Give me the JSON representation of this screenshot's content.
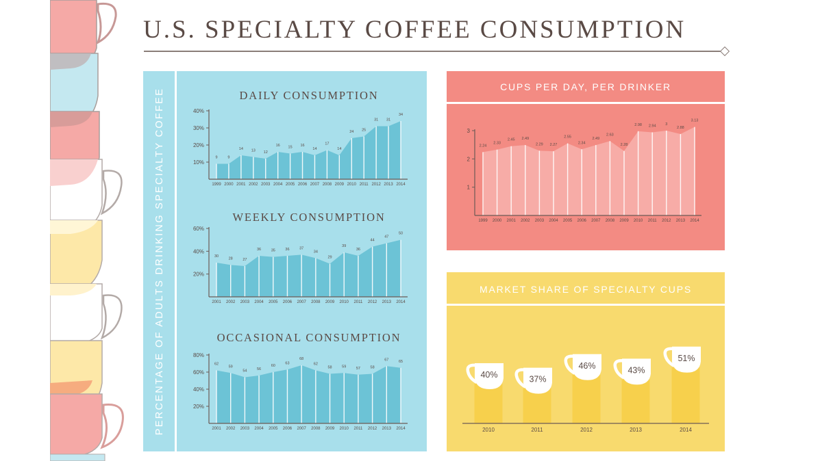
{
  "header": {
    "title": "U.S. SPECIALTY COFFEE CONSUMPTION"
  },
  "left_panel": {
    "ylabel": "PERCENTAGE OF ADULTS DRINKING SPECIALTY COFFEE",
    "background": "#a8dfeb"
  },
  "colors": {
    "blue_fill": "#6cc3d6",
    "blue_bg": "#a8dfeb",
    "red_bg": "#f38b83",
    "red_fill": "#f7aca7",
    "yellow_bg": "#f8da6e",
    "yellow_bar": "#f7d04c",
    "text_dark": "#5a4a45",
    "axis": "#6b5a55"
  },
  "chart_data": [
    {
      "id": "daily",
      "type": "area",
      "title": "DAILY CONSUMPTION",
      "xlabel": "",
      "ylabel": "PERCENTAGE OF ADULTS DRINKING SPECIALTY COFFEE",
      "categories": [
        "1999",
        "2000",
        "2001",
        "2002",
        "2003",
        "2004",
        "2005",
        "2006",
        "2007",
        "2008",
        "2009",
        "2010",
        "2011",
        "2012",
        "2013",
        "2014"
      ],
      "values": [
        9,
        9,
        14,
        13,
        12,
        16,
        15,
        16,
        14,
        17,
        14,
        24,
        25,
        31,
        31,
        34
      ],
      "yticks": [
        "10%",
        "20%",
        "30%",
        "40%"
      ],
      "ylim": [
        0,
        40
      ],
      "grid": false
    },
    {
      "id": "weekly",
      "type": "area",
      "title": "WEEKLY CONSUMPTION",
      "xlabel": "",
      "ylabel": "PERCENTAGE OF ADULTS DRINKING SPECIALTY COFFEE",
      "categories": [
        "2001",
        "2002",
        "2003",
        "2004",
        "2005",
        "2006",
        "2007",
        "2008",
        "2009",
        "2010",
        "2011",
        "2012",
        "2013",
        "2014"
      ],
      "values": [
        30,
        28,
        27,
        36,
        35,
        36,
        37,
        34,
        29,
        39,
        36,
        44,
        47,
        50
      ],
      "yticks": [
        "20%",
        "40%",
        "60%"
      ],
      "ylim": [
        0,
        60
      ],
      "grid": false
    },
    {
      "id": "occasional",
      "type": "area",
      "title": "OCCASIONAL CONSUMPTION",
      "xlabel": "",
      "ylabel": "PERCENTAGE OF ADULTS DRINKING SPECIALTY COFFEE",
      "categories": [
        "2001",
        "2002",
        "2003",
        "2004",
        "2005",
        "2006",
        "2007",
        "2008",
        "2009",
        "2010",
        "2011",
        "2012",
        "2013",
        "2014"
      ],
      "values": [
        62,
        59,
        54,
        56,
        60,
        63,
        68,
        62,
        58,
        59,
        57,
        58,
        67,
        65
      ],
      "yticks": [
        "20%",
        "40%",
        "60%",
        "80%"
      ],
      "ylim": [
        0,
        80
      ],
      "grid": false
    },
    {
      "id": "cups_per_day",
      "type": "area",
      "title": "CUPS PER DAY, PER DRINKER",
      "xlabel": "",
      "ylabel": "",
      "categories": [
        "1999",
        "2000",
        "2001",
        "2002",
        "2003",
        "2004",
        "2005",
        "2006",
        "2007",
        "2008",
        "2009",
        "2010",
        "2011",
        "2012",
        "2013",
        "2014"
      ],
      "values": [
        2.24,
        2.33,
        2.45,
        2.49,
        2.29,
        2.27,
        2.55,
        2.34,
        2.49,
        2.63,
        2.28,
        2.98,
        2.94,
        3,
        2.88,
        3.13
      ],
      "value_labels": [
        "2.24",
        "2.33",
        "2.45",
        "2.49",
        "2.29",
        "2.27",
        "2.55",
        "2.34",
        "2.49",
        "2.63",
        "2.28",
        "2.98",
        "2.94",
        "3",
        "2.88",
        "3.13"
      ],
      "yticks": [
        "1",
        "2",
        "3"
      ],
      "ylim": [
        0,
        3
      ],
      "grid": false
    },
    {
      "id": "market_share",
      "type": "bar",
      "title": "MARKET SHARE OF SPECIALTY CUPS",
      "xlabel": "",
      "ylabel": "",
      "categories": [
        "2010",
        "2011",
        "2012",
        "2013",
        "2014"
      ],
      "values": [
        40,
        37,
        46,
        43,
        51
      ],
      "value_labels": [
        "40%",
        "37%",
        "46%",
        "43%",
        "51%"
      ],
      "ylim": [
        0,
        60
      ],
      "grid": false,
      "annotations": "Values shown inside white coffee-cup icons atop each bar"
    }
  ]
}
